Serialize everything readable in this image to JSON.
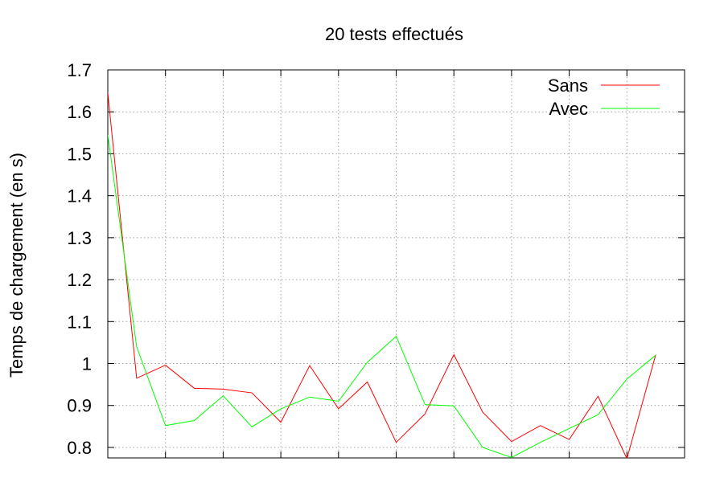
{
  "chart_data": {
    "type": "line",
    "title": "20 tests effectués",
    "xlabel": "",
    "ylabel": "Temps de chargement (en s)",
    "ylim": [
      0.775,
      1.7
    ],
    "xlim": [
      1,
      21
    ],
    "yticks": [
      0.8,
      0.9,
      1,
      1.1,
      1.2,
      1.3,
      1.4,
      1.5,
      1.6,
      1.7
    ],
    "ytick_labels": [
      "0.8",
      "0.9",
      "1",
      "1.1",
      "1.2",
      "1.3",
      "1.4",
      "1.5",
      "1.6",
      "1.7"
    ],
    "xticks": [
      1,
      3,
      5,
      7,
      9,
      11,
      13,
      15,
      17,
      19,
      21
    ],
    "grid": true,
    "legend_position": "top-right",
    "x": [
      1,
      2,
      3,
      4,
      5,
      6,
      7,
      8,
      9,
      10,
      11,
      12,
      13,
      14,
      15,
      16,
      17,
      18,
      19,
      20
    ],
    "series": [
      {
        "name": "Sans",
        "color": "#ff0000",
        "values": [
          1.645,
          0.965,
          0.996,
          0.941,
          0.939,
          0.93,
          0.86,
          0.995,
          0.892,
          0.956,
          0.812,
          0.88,
          1.021,
          0.884,
          0.814,
          0.852,
          0.819,
          0.922,
          0.773,
          1.021
        ]
      },
      {
        "name": "Avec",
        "color": "#00ff00",
        "values": [
          1.545,
          1.04,
          0.852,
          0.864,
          0.923,
          0.849,
          0.892,
          0.92,
          0.91,
          1.003,
          1.065,
          0.902,
          0.899,
          0.8,
          0.776,
          0.812,
          0.845,
          0.878,
          0.963,
          1.02
        ]
      }
    ]
  }
}
